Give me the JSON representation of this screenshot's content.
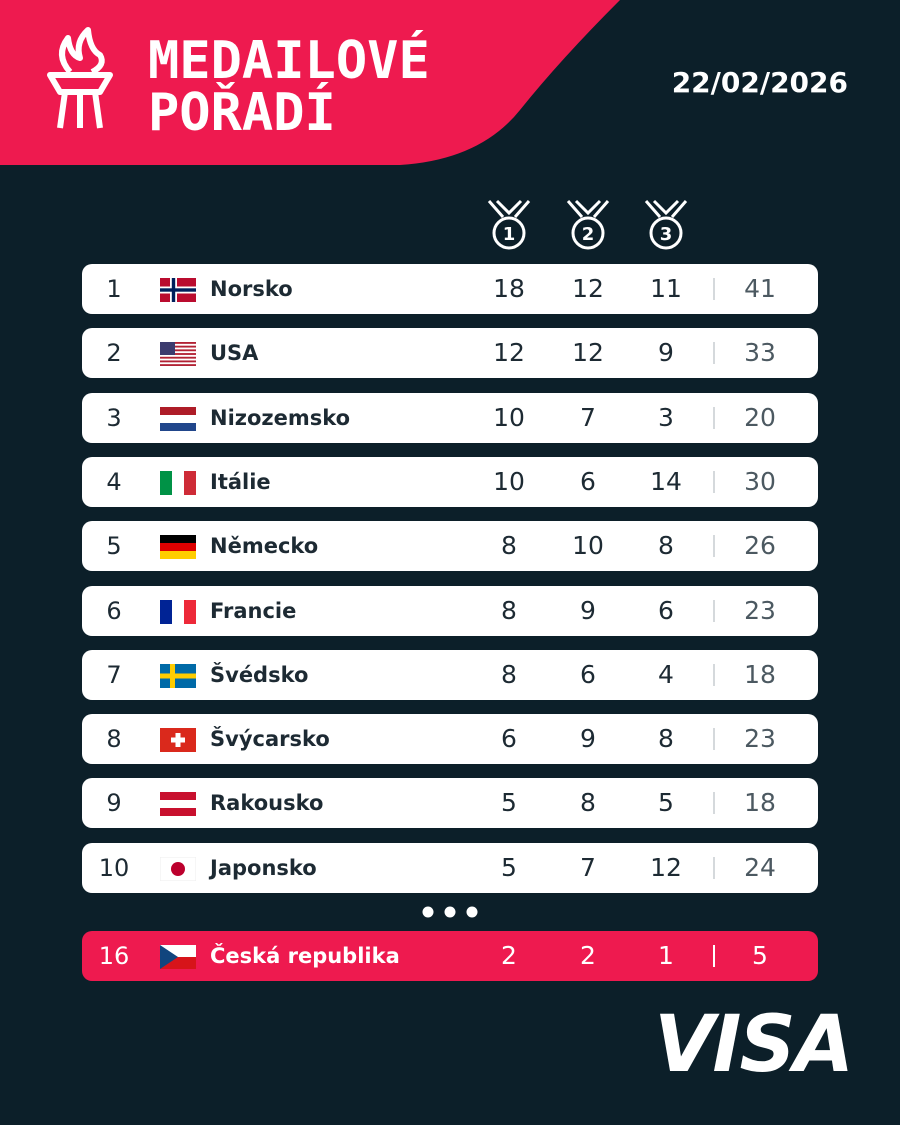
{
  "header": {
    "title_lines": [
      "MEDAILOVÉ",
      "POŘADÍ"
    ],
    "date": "22/02/2026"
  },
  "medal_columns": [
    "1",
    "2",
    "3"
  ],
  "table": {
    "rows": [
      [
        1,
        "Norsko",
        18,
        12,
        11,
        41
      ],
      [
        2,
        "USA",
        12,
        12,
        9,
        33
      ],
      [
        3,
        "Nizozemsko",
        10,
        7,
        3,
        20
      ],
      [
        4,
        "Itálie",
        10,
        6,
        14,
        30
      ],
      [
        5,
        "Německo",
        8,
        10,
        8,
        26
      ],
      [
        6,
        "Francie",
        8,
        9,
        6,
        23
      ],
      [
        7,
        "Švédsko",
        8,
        6,
        4,
        18
      ],
      [
        8,
        "Švýcarsko",
        6,
        9,
        8,
        23
      ],
      [
        9,
        "Rakousko",
        5,
        8,
        5,
        18
      ],
      [
        10,
        "Japonsko",
        5,
        7,
        12,
        24
      ]
    ],
    "highlight": [
      16,
      "Česká republika",
      2,
      2,
      1,
      5
    ]
  },
  "sponsor": "VISA"
}
